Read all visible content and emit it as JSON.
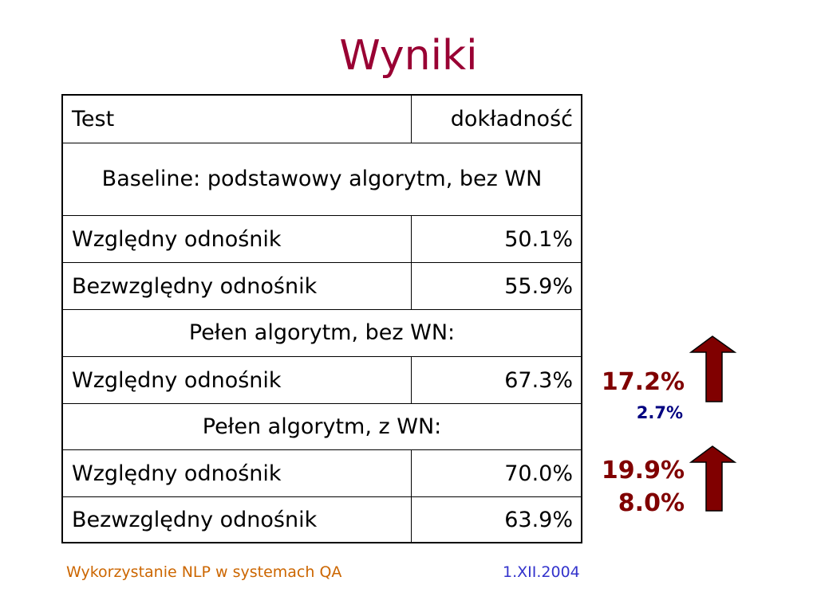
{
  "title": "Wyniki",
  "table": {
    "header": [
      "Test",
      "dokładność"
    ],
    "rows": [
      [
        "Baseline: podstawowy algorytm, bez WN"
      ],
      [
        "Względny odnośnik",
        "50.1%"
      ],
      [
        "Bezwzględny odnośnik",
        "55.9%"
      ],
      [
        "Pełen algorytm, bez WN:"
      ],
      [
        "Względny odnośnik",
        "67.3%"
      ],
      [
        "Pełen algorytm, z WN:"
      ],
      [
        "Względny odnośnik",
        "70.0%"
      ],
      [
        "Bezwzględny odnośnik",
        "63.9%"
      ]
    ]
  },
  "annotations": [
    "17.2%",
    "2.7%",
    "19.9%",
    "8.0%"
  ],
  "footer": {
    "text": "Wykorzystanie NLP w systemach QA",
    "date": "1.XII.2004"
  }
}
